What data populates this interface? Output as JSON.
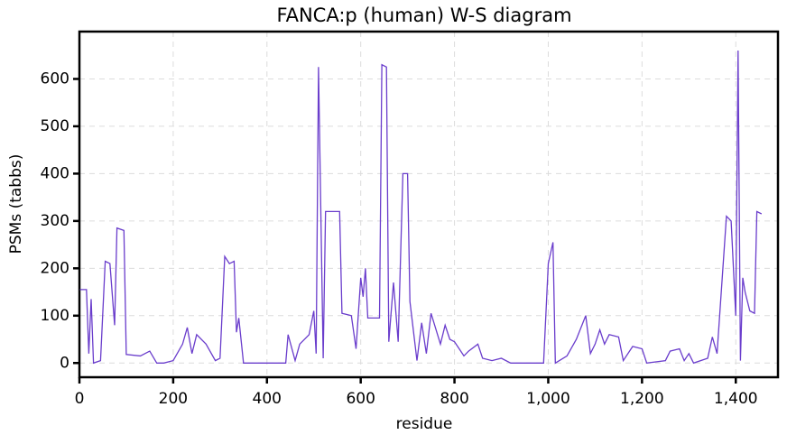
{
  "chart_data": {
    "type": "line",
    "title": "FANCA:p (human) W-S diagram",
    "x_label": "residue",
    "y_label": "PSMs (tabbs)",
    "x": [
      1,
      15,
      20,
      25,
      30,
      45,
      55,
      65,
      75,
      80,
      95,
      100,
      130,
      150,
      165,
      180,
      200,
      220,
      230,
      240,
      250,
      270,
      290,
      300,
      310,
      320,
      330,
      335,
      340,
      350,
      400,
      440,
      445,
      460,
      470,
      490,
      500,
      505,
      510,
      520,
      525,
      555,
      560,
      580,
      590,
      600,
      605,
      610,
      615,
      640,
      645,
      655,
      660,
      670,
      680,
      690,
      700,
      705,
      720,
      730,
      740,
      750,
      770,
      780,
      790,
      800,
      820,
      830,
      850,
      860,
      880,
      900,
      920,
      990,
      1000,
      1010,
      1015,
      1040,
      1060,
      1080,
      1090,
      1100,
      1110,
      1120,
      1130,
      1150,
      1160,
      1180,
      1200,
      1210,
      1250,
      1260,
      1280,
      1290,
      1300,
      1310,
      1340,
      1350,
      1360,
      1380,
      1390,
      1400,
      1405,
      1410,
      1415,
      1420,
      1430,
      1440,
      1445,
      1455
    ],
    "series": [
      {
        "name": "PSMs",
        "color": "#6a3dcc",
        "values": [
          155,
          155,
          20,
          135,
          0,
          5,
          215,
          210,
          80,
          285,
          280,
          18,
          15,
          25,
          0,
          0,
          5,
          40,
          75,
          20,
          60,
          40,
          5,
          10,
          225,
          210,
          215,
          65,
          95,
          0,
          0,
          0,
          60,
          5,
          40,
          60,
          110,
          20,
          625,
          10,
          320,
          320,
          105,
          100,
          30,
          180,
          140,
          200,
          95,
          95,
          630,
          625,
          45,
          170,
          45,
          400,
          400,
          130,
          5,
          85,
          20,
          105,
          40,
          80,
          50,
          45,
          15,
          25,
          40,
          10,
          5,
          10,
          0,
          0,
          210,
          255,
          0,
          15,
          50,
          100,
          20,
          40,
          70,
          40,
          60,
          55,
          5,
          35,
          30,
          0,
          5,
          25,
          30,
          5,
          20,
          0,
          10,
          55,
          20,
          310,
          300,
          100,
          660,
          5,
          180,
          150,
          110,
          105,
          320,
          315
        ]
      }
    ],
    "xlim": [
      0,
      1490
    ],
    "ylim": [
      -30,
      700
    ],
    "xticks": [
      0,
      200,
      400,
      600,
      800,
      {
        "value": 1000,
        "label": "1,000"
      },
      {
        "value": 1200,
        "label": "1,200"
      },
      {
        "value": 1400,
        "label": "1,400"
      }
    ],
    "yticks": [
      0,
      100,
      200,
      300,
      400,
      500,
      600
    ],
    "grid": true
  }
}
